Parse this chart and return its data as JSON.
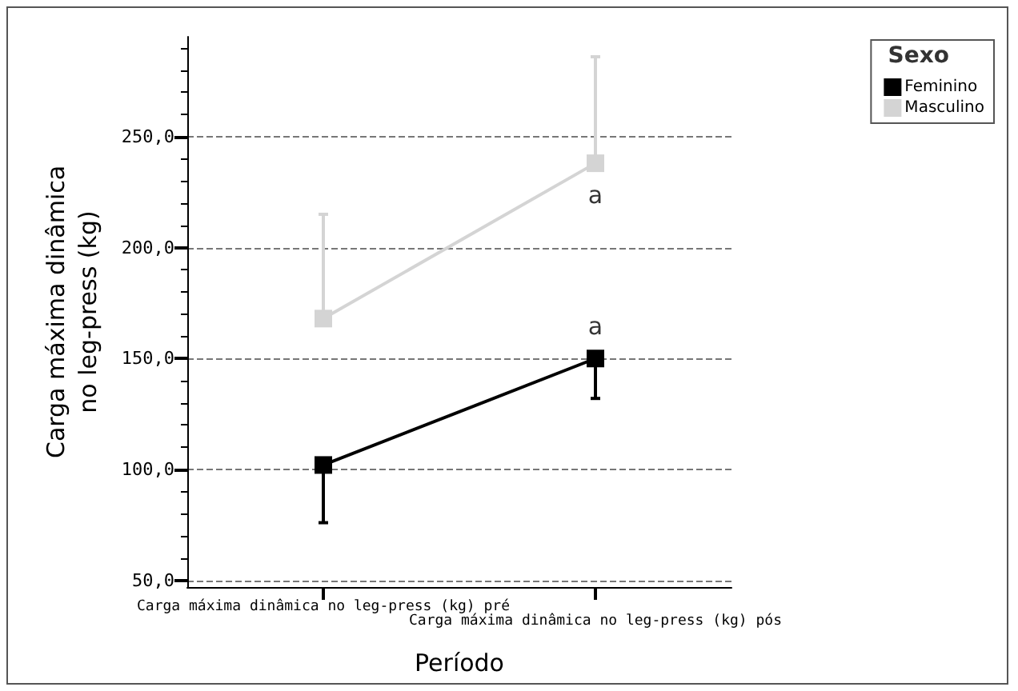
{
  "chart_data": {
    "type": "line",
    "xlabel": "Período",
    "ylabel": "Carga máxima dinâmica\nno leg-press (kg)",
    "legend_title": "Sexo",
    "categories": [
      "Carga máxima dinâmica no leg-press (kg) pré",
      "Carga máxima dinâmica no leg-press (kg) pós"
    ],
    "series": [
      {
        "name": "Feminino",
        "color": "#000000",
        "values": [
          102,
          150
        ],
        "errors": [
          [
            76,
            102
          ],
          [
            132,
            150
          ]
        ]
      },
      {
        "name": "Masculino",
        "color": "#d4d4d4",
        "values": [
          168,
          238
        ],
        "errors": [
          [
            168,
            215
          ],
          [
            238,
            286
          ]
        ]
      }
    ],
    "ylim": [
      47,
      295
    ],
    "yticks": [
      {
        "value": 50,
        "label": "50,0"
      },
      {
        "value": 100,
        "label": "100,0"
      },
      {
        "value": 150,
        "label": "150,0"
      },
      {
        "value": 200,
        "label": "200,0"
      },
      {
        "value": 250,
        "label": "250,0"
      }
    ],
    "annotations": [
      {
        "text": "a",
        "x": "Carga máxima dinâmica no leg-press (kg) pós",
        "y": 150
      },
      {
        "text": "a",
        "x": "Carga máxima dinâmica no leg-press (kg) pós",
        "y": 238
      }
    ],
    "grid": "y",
    "legend": "top right",
    "marker": "square",
    "line_style": "solid"
  }
}
